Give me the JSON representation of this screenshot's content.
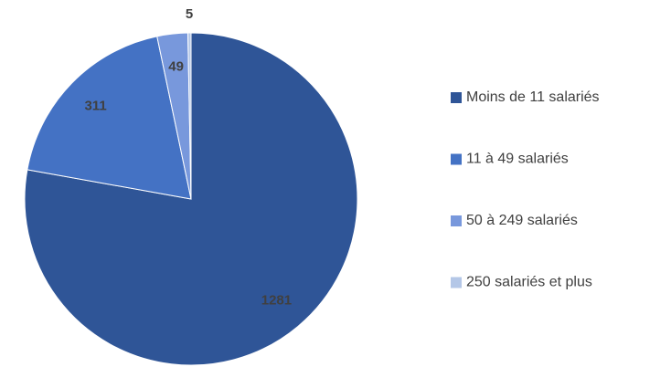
{
  "chart_data": {
    "type": "pie",
    "categories": [
      "Moins de 11 salariés",
      "11 à 49 salariés",
      "50 à 249 salariés",
      "250 salariés et plus"
    ],
    "values": [
      1281,
      311,
      49,
      5
    ],
    "colors": [
      "#2f5597",
      "#4472c4",
      "#7898dc",
      "#b4c7e7"
    ],
    "legend": "right"
  }
}
